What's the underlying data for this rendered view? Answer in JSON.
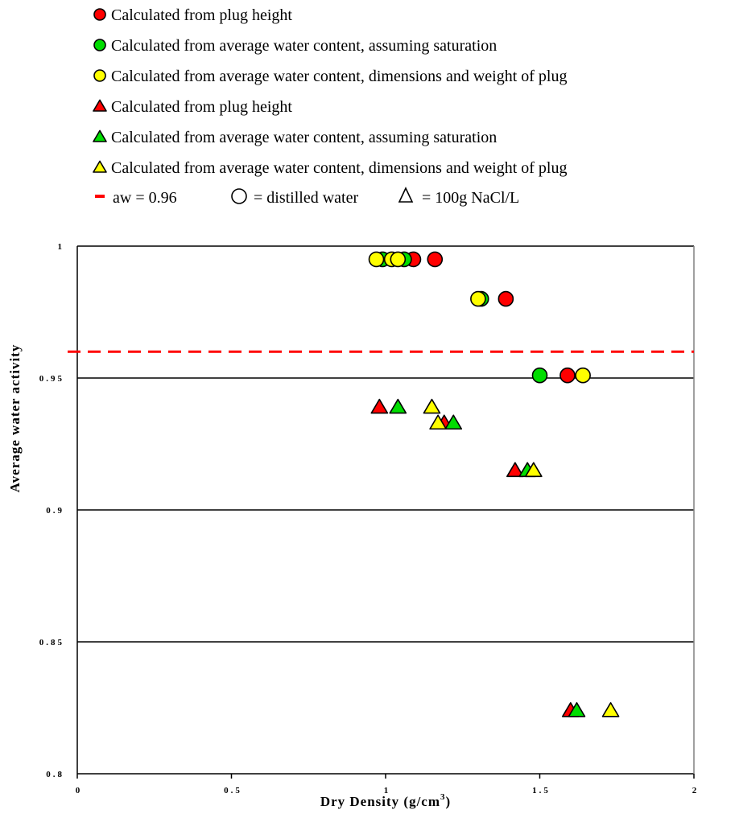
{
  "chart_data": {
    "type": "scatter",
    "title": "",
    "xlabel": "Dry Density (g/cm",
    "xlabel_sup": "3",
    "xlabel_end": ")",
    "ylabel": "Average water activity",
    "xlim": [
      0,
      2
    ],
    "ylim": [
      0.8,
      1.0
    ],
    "x_ticks": [
      0,
      0.5,
      1,
      1.5,
      2
    ],
    "x_tick_labels": [
      "0",
      "0.5",
      "1",
      "1.5",
      "2"
    ],
    "y_ticks": [
      0.8,
      0.85,
      0.9,
      0.95,
      1.0
    ],
    "y_tick_labels": [
      "0.8",
      "0.85",
      "0.9",
      "0.95",
      "1"
    ],
    "grid": "horizontal",
    "legend_position": "top",
    "reference_line": {
      "label": "aw = 0.96",
      "y": 0.96,
      "color": "#ff0000"
    },
    "marker_key": [
      {
        "symbol": "circle",
        "label": "= distilled water"
      },
      {
        "symbol": "triangle",
        "label": "= 100g NaCl/L"
      }
    ],
    "series": [
      {
        "name": "Calculated from plug height",
        "marker": "circle",
        "color": "#ff0000",
        "x": [
          1.09,
          1.16,
          1.39,
          1.59
        ],
        "y": [
          0.995,
          0.995,
          0.98,
          0.951
        ]
      },
      {
        "name": "Calculated from average water content, assuming saturation",
        "marker": "circle",
        "color": "#00dd00",
        "x": [
          0.99,
          1.06,
          1.31,
          1.5
        ],
        "y": [
          0.995,
          0.995,
          0.98,
          0.951
        ]
      },
      {
        "name": "Calculated from average water content, dimensions and weight of plug",
        "marker": "circle",
        "color": "#ffff00",
        "x": [
          0.97,
          1.02,
          1.04,
          1.3,
          1.64
        ],
        "y": [
          0.995,
          0.995,
          0.995,
          0.98,
          0.951
        ]
      },
      {
        "name": "Calculated from plug height",
        "marker": "triangle",
        "color": "#ff0000",
        "x": [
          0.98,
          1.19,
          1.42,
          1.6
        ],
        "y": [
          0.939,
          0.933,
          0.915,
          0.824
        ]
      },
      {
        "name": "Calculated from average water content, assuming saturation",
        "marker": "triangle",
        "color": "#00dd00",
        "x": [
          1.04,
          1.22,
          1.46,
          1.62
        ],
        "y": [
          0.939,
          0.933,
          0.915,
          0.824
        ]
      },
      {
        "name": "Calculated from average water content, dimensions and weight of plug",
        "marker": "triangle",
        "color": "#ffff00",
        "x": [
          1.15,
          1.17,
          1.48,
          1.73
        ],
        "y": [
          0.939,
          0.933,
          0.915,
          0.824
        ]
      }
    ]
  }
}
